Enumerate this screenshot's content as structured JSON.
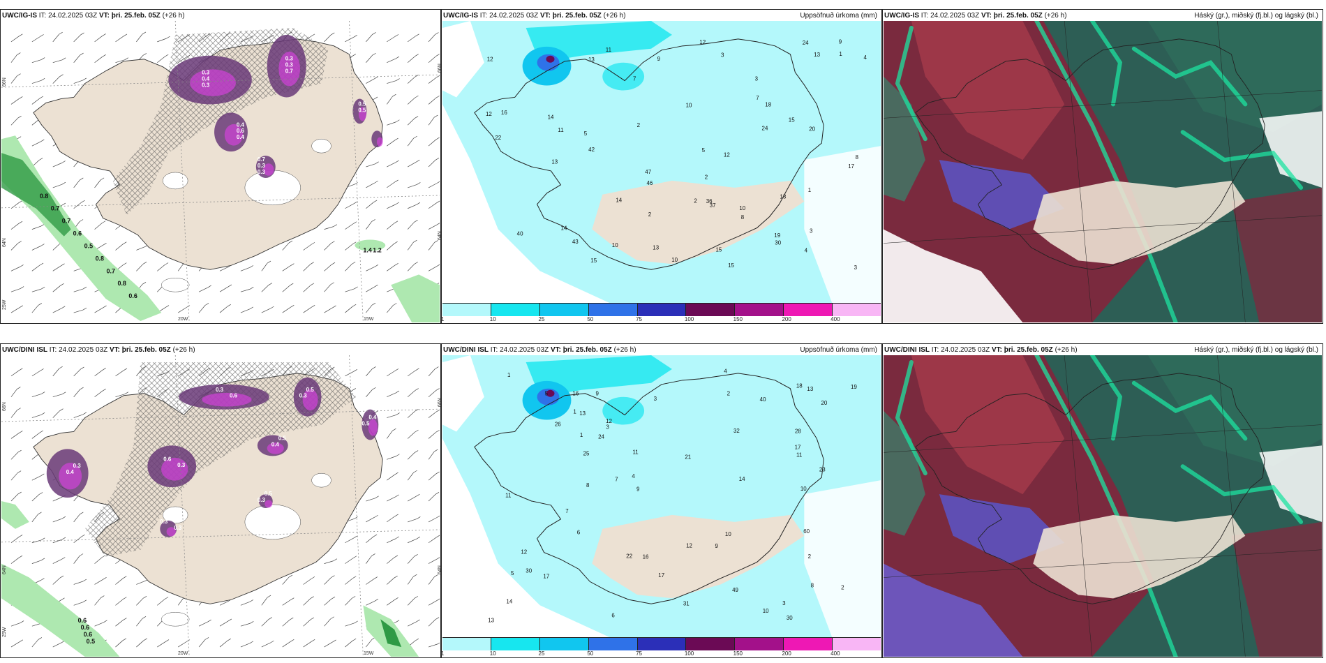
{
  "colors": {
    "land": "#ece1d3",
    "sea": "#ffffff",
    "precip_base": "#b4f8fb",
    "purple_dark": "#6a3a78",
    "purple_mid": "#a04dba",
    "magenta": "#e040e8",
    "green_dark": "#2f9a45",
    "green_light": "#aee8b0"
  },
  "colorbar": {
    "colors": [
      "#b4f8fb",
      "#17e6ef",
      "#11c6ef",
      "#2f72e8",
      "#2b2fb8",
      "#6b0a55",
      "#a3118a",
      "#ee18b4",
      "#f8b6f5"
    ],
    "ticks": [
      "1",
      "10",
      "25",
      "50",
      "75",
      "100",
      "150",
      "200",
      "400"
    ]
  },
  "rows": [
    {
      "id": "ig-is",
      "panels": [
        {
          "model": "UWC/IG-IS",
          "it_label": "IT:",
          "it": "24.02.2025 03Z",
          "vt_label": "VT:",
          "vt": "þri. 25.feb. 05Z",
          "lead": "(+26 h)",
          "title_right": ""
        },
        {
          "model": "UWC/IG-IS",
          "it_label": "IT:",
          "it": "24.02.2025 03Z",
          "vt_label": "VT:",
          "vt": "þri. 25.feb. 05Z",
          "lead": "(+26 h)",
          "title_right": "Uppsöfnuð úrkoma (mm)"
        },
        {
          "model": "UWC/IG-IS",
          "it_label": "IT:",
          "it": "24.02.2025 03Z",
          "vt_label": "VT:",
          "vt": "þri. 25.feb. 05Z",
          "lead": "(+26 h)",
          "title_right": "Háský (gr.), miðský (fj.bl.) og lágský (bl.)"
        }
      ],
      "axis": {
        "lat_upper": "66N",
        "lat_mid": "64N",
        "lon_a": "20W",
        "lon_b": "15W",
        "lon_c": "25W"
      },
      "precip_values": [
        "15",
        "13",
        "14",
        "14",
        "15",
        "15",
        "17",
        "42",
        "46",
        "43",
        "40",
        "12",
        "47",
        "36",
        "24",
        "24",
        "22",
        "13",
        "13",
        "20",
        "19",
        "37",
        "15",
        "30",
        "12",
        "18",
        "13",
        "11",
        "10",
        "7",
        "8",
        "9",
        "3",
        "10",
        "11",
        "13",
        "12",
        "16",
        "8",
        "10",
        "9",
        "5",
        "4",
        "3",
        "3",
        "1",
        "2",
        "2",
        "2",
        "1",
        "14",
        "10",
        "5",
        "7",
        "12",
        "3",
        "4",
        "2"
      ],
      "purple_values": [
        "0.3",
        "0.3",
        "0.4",
        "0.7",
        "0.5",
        "0.7",
        "0.4",
        "0.3",
        "0.6",
        "0.3",
        "0.5",
        "0.4",
        "0.3",
        "0.7",
        "0.4",
        "0.3"
      ],
      "green_values": [
        "0.8",
        "0.7",
        "0.7",
        "0.6",
        "0.5",
        "0.8",
        "0.7",
        "0.8",
        "0.6",
        "1.4",
        "1.2"
      ]
    },
    {
      "id": "dini-isl",
      "panels": [
        {
          "model": "UWC/DINI ISL",
          "it_label": "IT:",
          "it": "24.02.2025 03Z",
          "vt_label": "VT:",
          "vt": "þri. 25.feb. 05Z",
          "lead": "(+26 h)",
          "title_right": ""
        },
        {
          "model": "UWC/DINI ISL",
          "it_label": "IT:",
          "it": "24.02.2025 03Z",
          "vt_label": "VT:",
          "vt": "þri. 25.feb. 05Z",
          "lead": "(+26 h)",
          "title_right": "Uppsöfnuð úrkoma (mm)"
        },
        {
          "model": "UWC/DINI ISL",
          "it_label": "IT:",
          "it": "24.02.2025 03Z",
          "vt_label": "VT:",
          "vt": "þri. 25.feb. 05Z",
          "lead": "(+26 h)",
          "title_right": "Háský (gr.), miðský (fj.bl.) og lágský (bl.)"
        }
      ],
      "axis": {
        "lat_upper": "66N",
        "lat_mid": "64N",
        "lon_a": "20W",
        "lon_b": "15W",
        "lon_c": "25W"
      },
      "precip_values": [
        "13",
        "13",
        "19",
        "60",
        "28",
        "31",
        "18",
        "30",
        "49",
        "12",
        "12",
        "32",
        "14",
        "22",
        "23",
        "13",
        "14",
        "10",
        "24",
        "40",
        "25",
        "16",
        "20",
        "30",
        "17",
        "17",
        "21",
        "16",
        "10",
        "11",
        "12",
        "8",
        "9",
        "7",
        "5",
        "6",
        "3",
        "2",
        "1",
        "3",
        "9",
        "11",
        "26",
        "17",
        "11",
        "4",
        "3",
        "2",
        "1",
        "8",
        "9",
        "5",
        "7",
        "10",
        "6",
        "4",
        "2",
        "1"
      ],
      "purple_values": [
        "0.3",
        "0.5",
        "0.5",
        "0.6",
        "0.4",
        "0.3",
        "0.3",
        "0.5",
        "0.6",
        "0.3",
        "0.4",
        "0.3",
        "0.5",
        "0.4",
        "0.3",
        "0.3"
      ],
      "green_values": [
        "0.6",
        "0.6",
        "0.6",
        "0.5"
      ]
    }
  ]
}
